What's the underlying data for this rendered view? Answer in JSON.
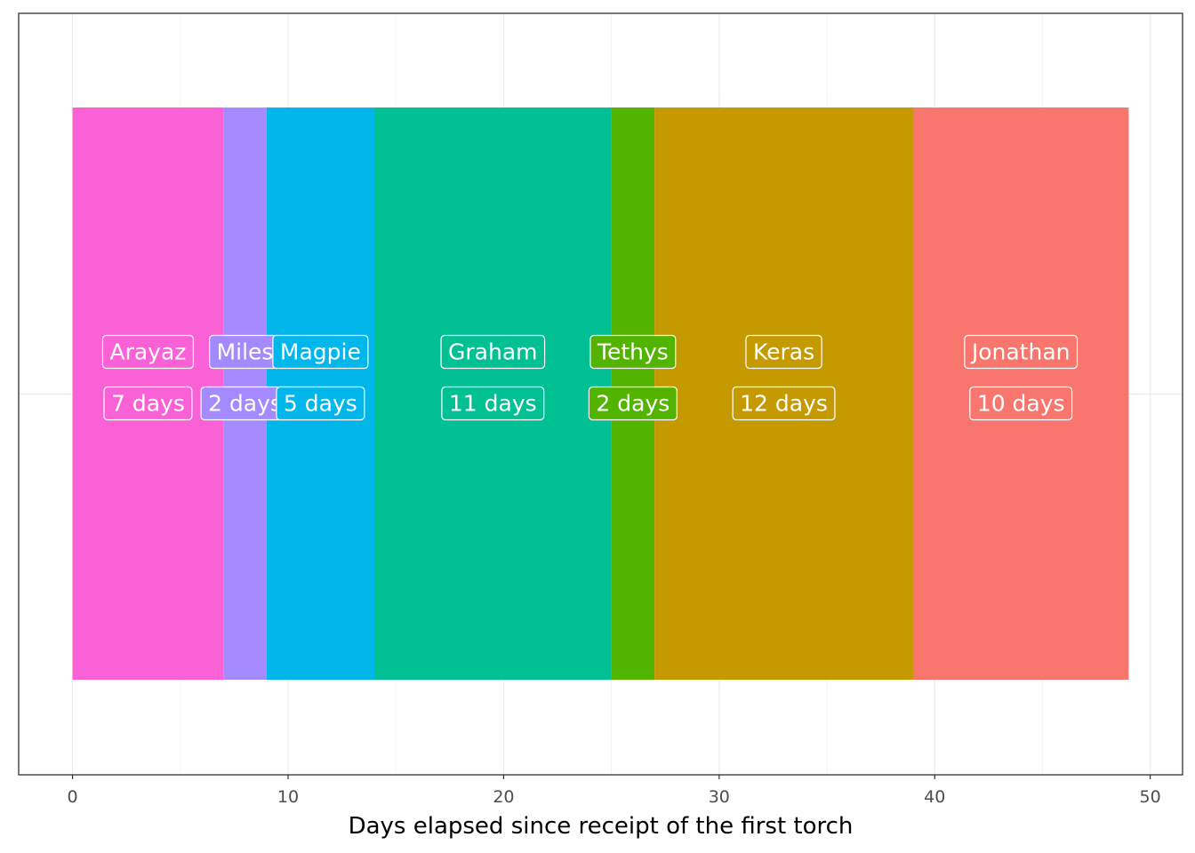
{
  "chart_data": {
    "type": "bar",
    "orientation": "horizontal-stacked",
    "title": "",
    "xlabel": "Days elapsed since receipt of the first torch",
    "ylabel": "",
    "xlim": [
      -2.5,
      51.5
    ],
    "x_ticks": [
      0,
      10,
      20,
      30,
      40,
      50
    ],
    "x_tick_labels": [
      "0",
      "10",
      "20",
      "30",
      "40",
      "50"
    ],
    "grid": true,
    "legend": "none",
    "segments": [
      {
        "name": "Arayaz",
        "start": 0,
        "end": 7,
        "duration": 7,
        "label": "7 days",
        "color": "#FB61D7"
      },
      {
        "name": "Miles",
        "start": 7,
        "end": 9,
        "duration": 2,
        "label": "2 days",
        "color": "#A58AFF"
      },
      {
        "name": "Magpie",
        "start": 9,
        "end": 14,
        "duration": 5,
        "label": "5 days",
        "color": "#00B6EB"
      },
      {
        "name": "Graham",
        "start": 14,
        "end": 25,
        "duration": 11,
        "label": "11 days",
        "color": "#00C094"
      },
      {
        "name": "Tethys",
        "start": 25,
        "end": 27,
        "duration": 2,
        "label": "2 days",
        "color": "#53B400"
      },
      {
        "name": "Keras",
        "start": 27,
        "end": 39,
        "duration": 12,
        "label": "12 days",
        "color": "#C49A00"
      },
      {
        "name": "Jonathan",
        "start": 39,
        "end": 49,
        "duration": 10,
        "label": "10 days",
        "color": "#F8766D"
      }
    ]
  }
}
